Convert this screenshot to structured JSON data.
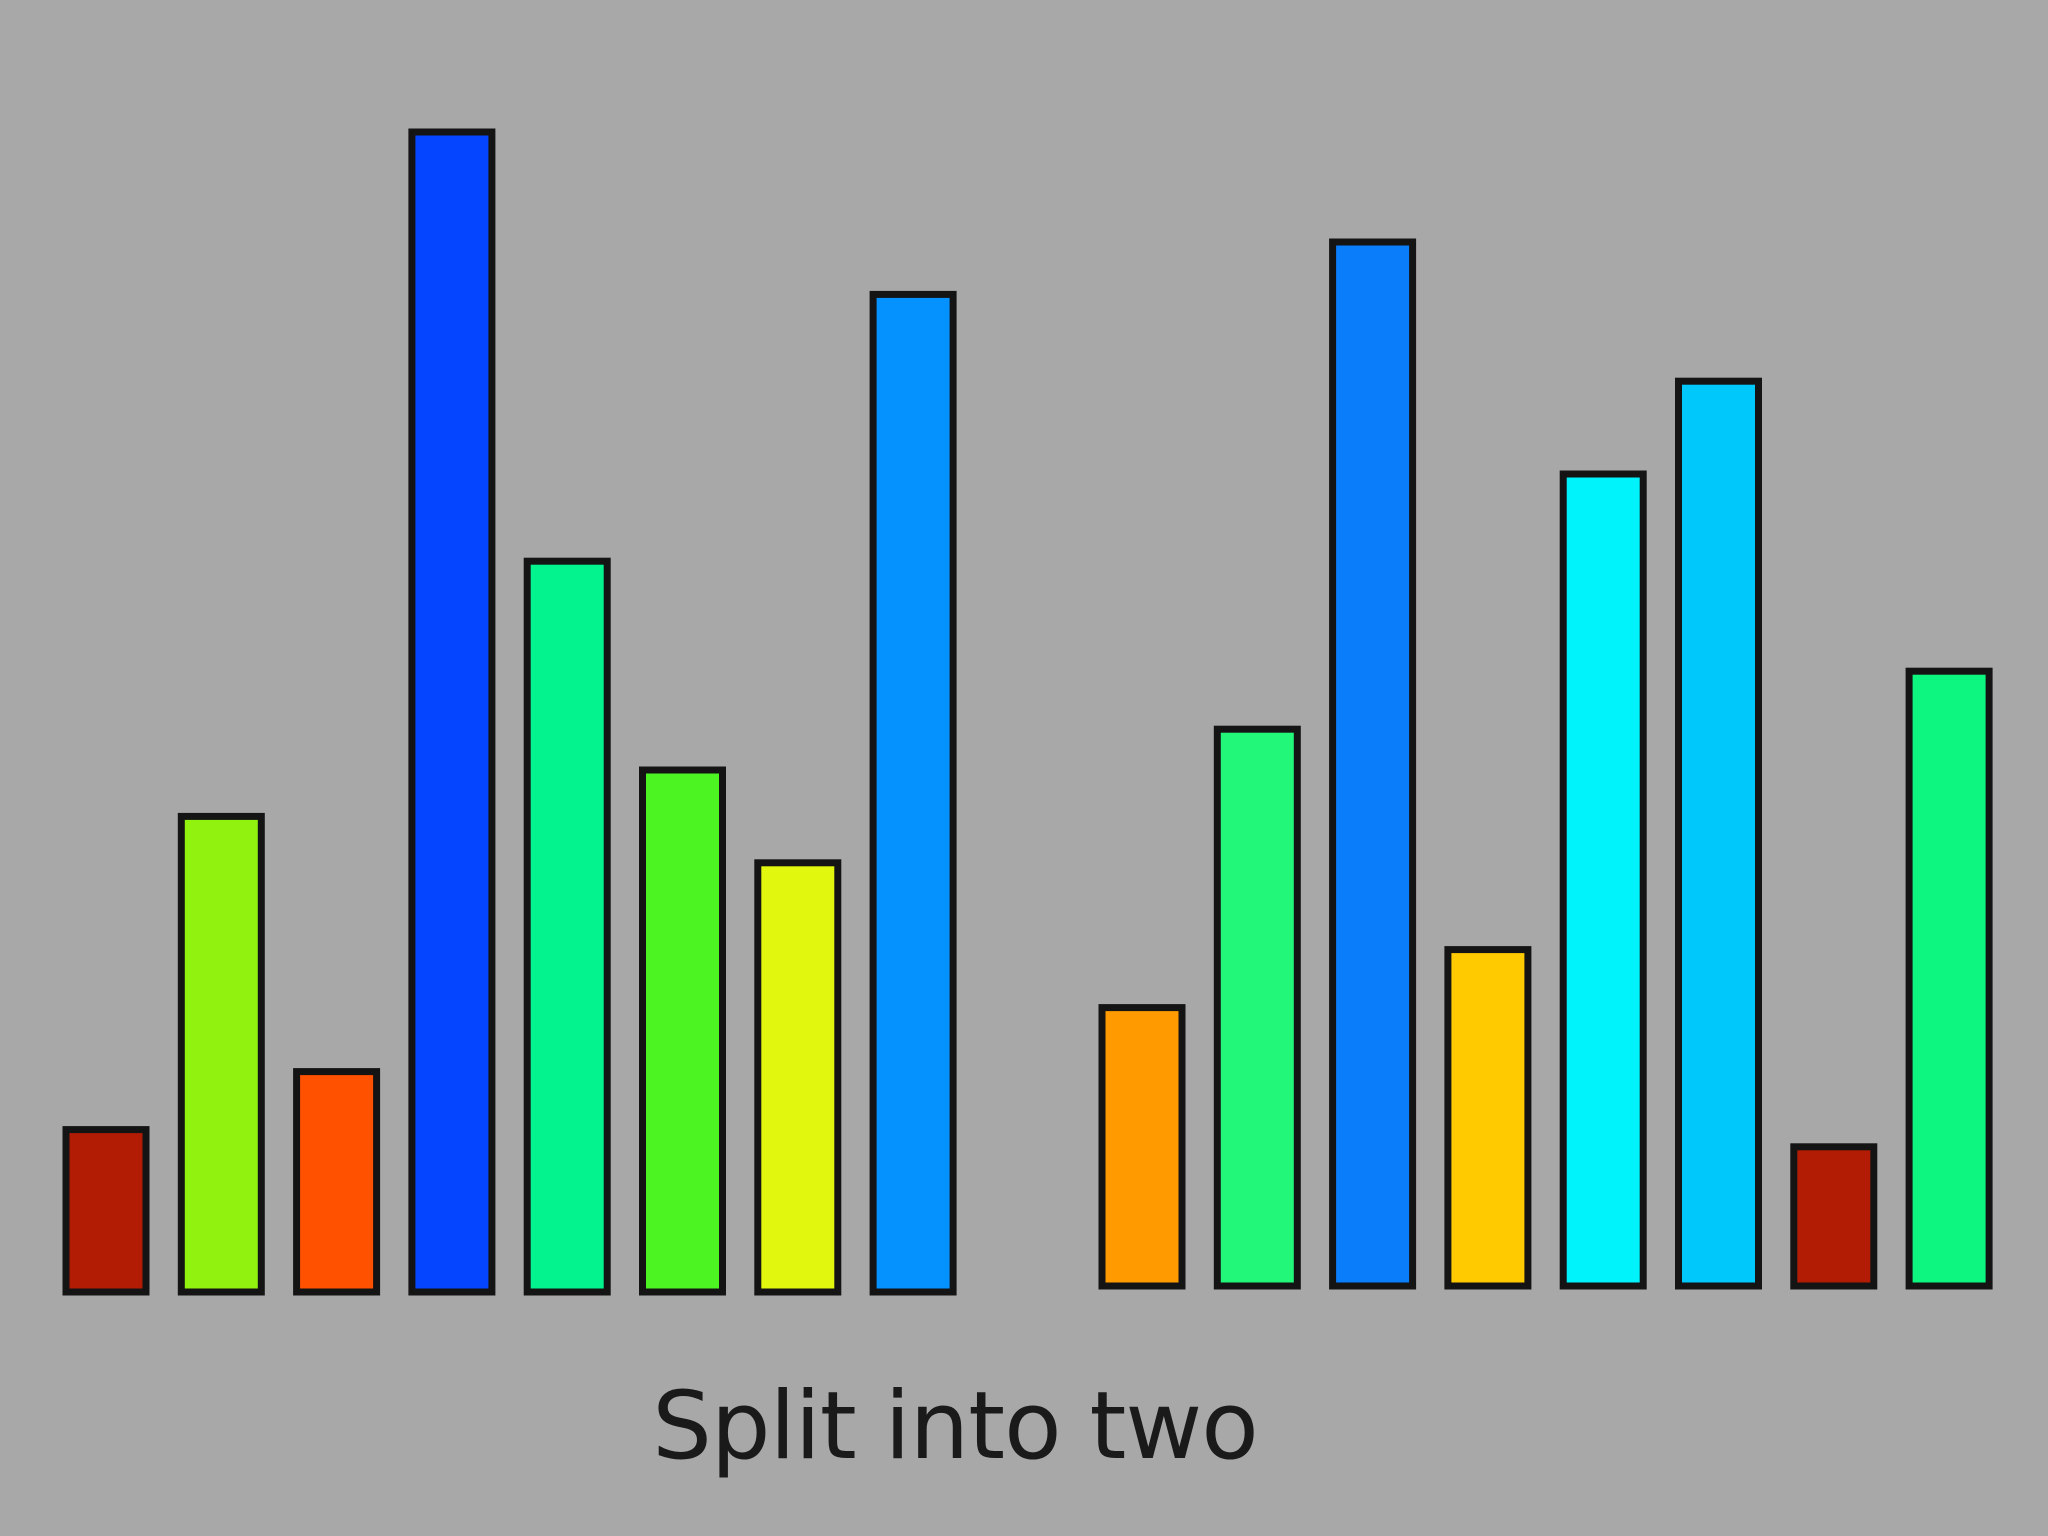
{
  "slide": {
    "caption": "Split into two"
  },
  "chart_data": [
    {
      "type": "bar",
      "title": "",
      "xlabel": "",
      "ylabel": "",
      "ylim": [
        0,
        100
      ],
      "grid": false,
      "legend": "none",
      "values": [
        14,
        41,
        19,
        100,
        63,
        45,
        37,
        86
      ],
      "colors": [
        "#b21c04",
        "#90f20e",
        "#ff5100",
        "#0545ff",
        "#03f48e",
        "#4cf422",
        "#e2f70e",
        "#0591fe"
      ]
    },
    {
      "type": "bar",
      "title": "",
      "xlabel": "",
      "ylabel": "",
      "ylim": [
        0,
        100
      ],
      "grid": false,
      "legend": "none",
      "values": [
        24,
        48,
        90,
        29,
        70,
        78,
        12,
        53
      ],
      "colors": [
        "#ff9a00",
        "#22f77a",
        "#0a7dfa",
        "#ffcb00",
        "#00f2fa",
        "#00c8fb",
        "#b21c04",
        "#0cf680"
      ]
    }
  ]
}
